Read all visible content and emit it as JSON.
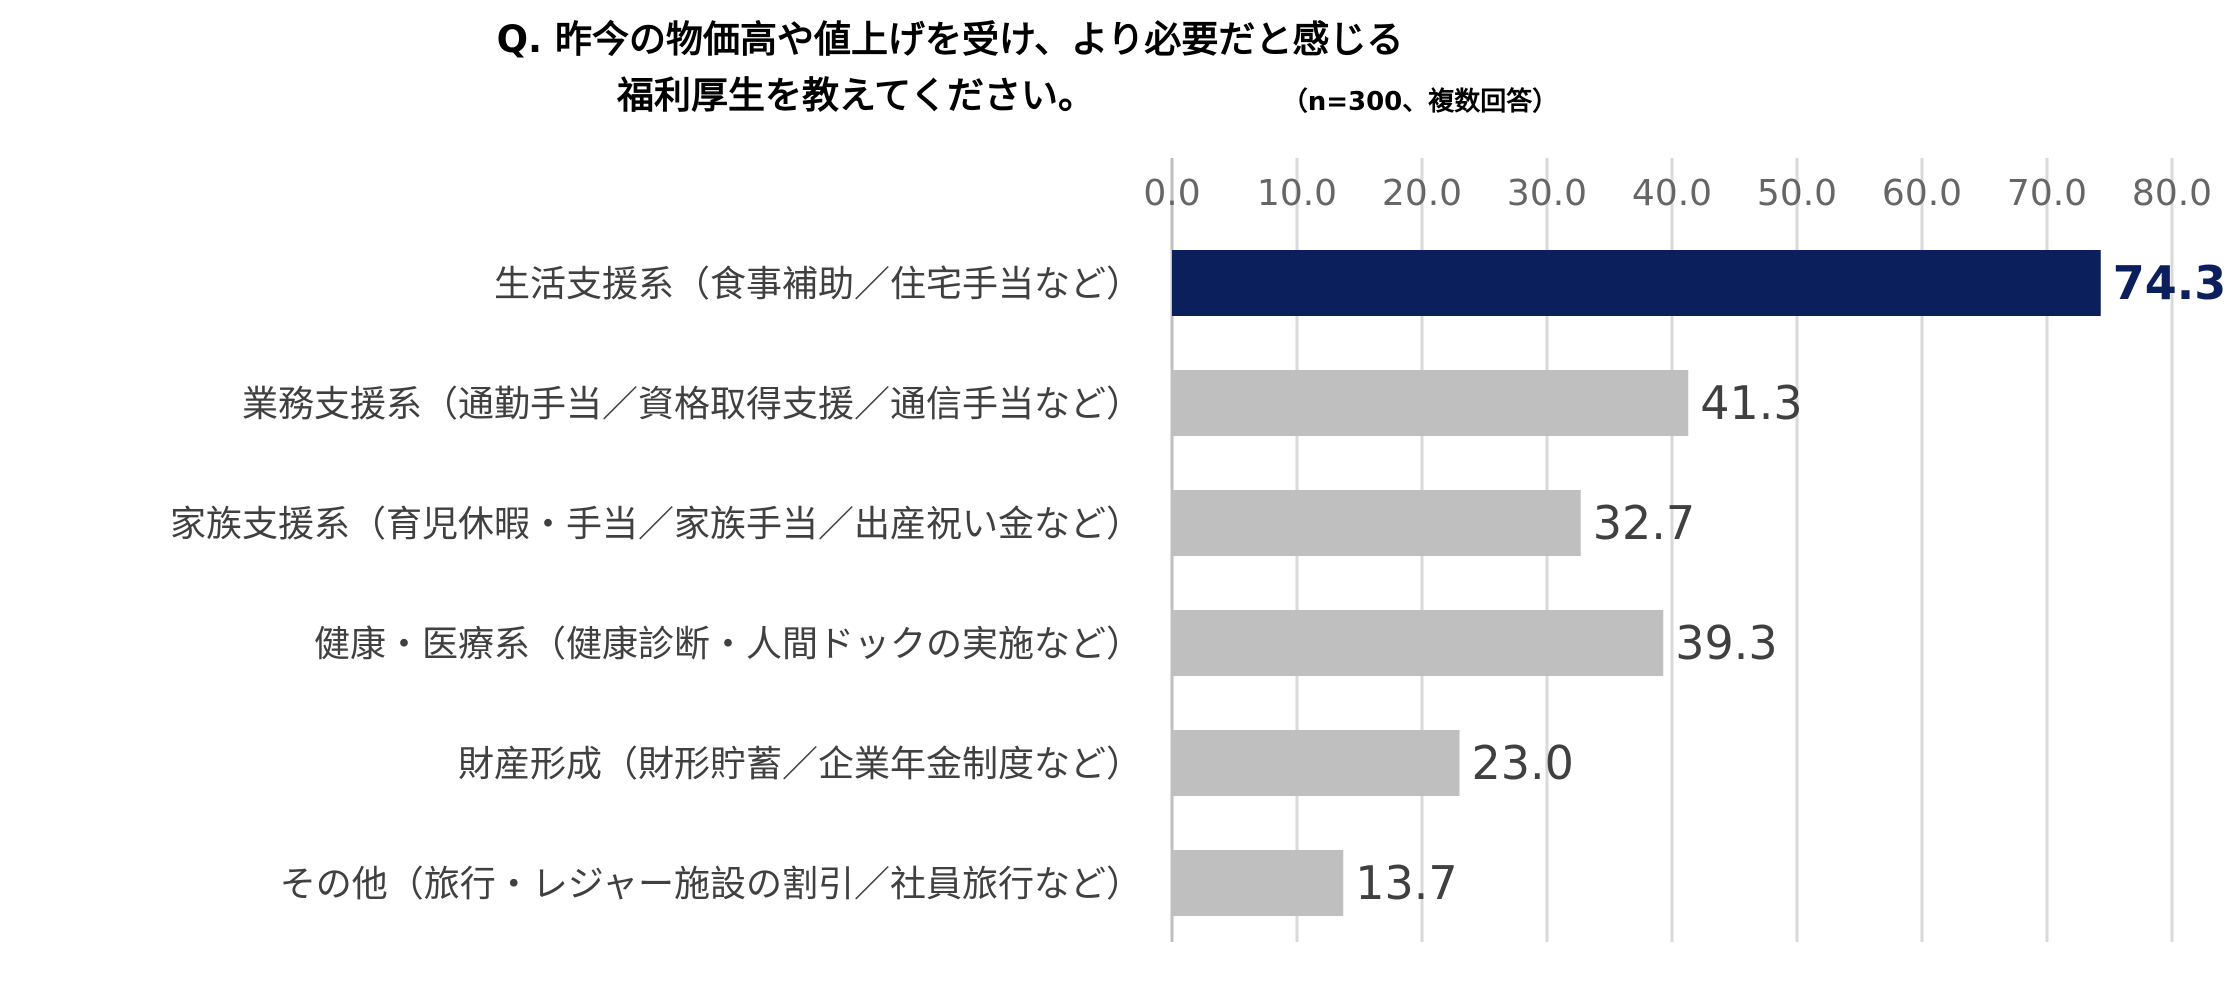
{
  "chart_data": {
    "type": "bar",
    "orientation": "horizontal",
    "title_line1": "Q. 昨今の物価高や値上げを受け、より必要だと感じる",
    "title_line2": "福利厚生を教えてください。",
    "note": "（n=300、複数回答）",
    "categories": [
      "生活支援系（食事補助／住宅手当など）",
      "業務支援系（通勤手当／資格取得支援／通信手当など）",
      "家族支援系（育児休暇・手当／家族手当／出産祝い金など）",
      "健康・医療系（健康診断・人間ドックの実施など）",
      "財産形成（財形貯蓄／企業年金制度など）",
      "その他（旅行・レジャー施設の割引／社員旅行など）"
    ],
    "values": [
      74.3,
      41.3,
      32.7,
      39.3,
      23.0,
      13.7
    ],
    "value_labels": [
      "74.3",
      "41.3",
      "32.7",
      "39.3",
      "23.0",
      "13.7"
    ],
    "xlim": [
      0,
      80
    ],
    "ticks": [
      "0.0",
      "10.0",
      "20.0",
      "30.0",
      "40.0",
      "50.0",
      "60.0",
      "70.0",
      "80.0"
    ],
    "tick_values": [
      0,
      10,
      20,
      30,
      40,
      50,
      60,
      70,
      80
    ],
    "grid": true,
    "highlight_index": 0,
    "colors": {
      "highlight": "#0b1f5c",
      "default": "#bfbfbf",
      "grid": "#d9d9d9"
    }
  }
}
